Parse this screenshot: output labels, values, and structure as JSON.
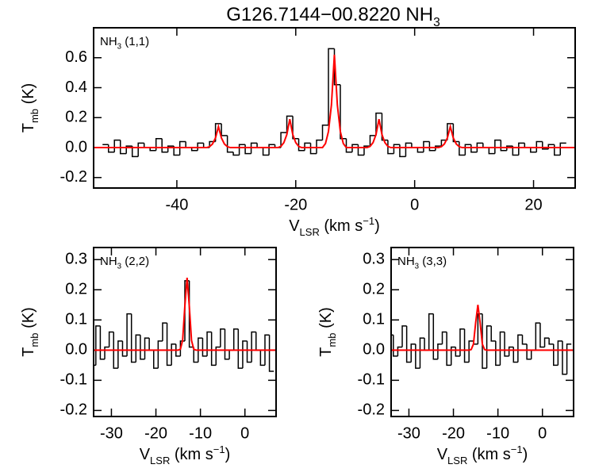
{
  "title": [
    {
      "text": "G126.7144−00.8220 NH"
    },
    {
      "text": "3",
      "shift": "sub"
    }
  ],
  "chart_data": [
    {
      "type": "line",
      "label": [
        {
          "text": "NH"
        },
        {
          "text": "3",
          "shift": "sub"
        },
        {
          "text": " (1,1)"
        }
      ],
      "xlabel": [
        {
          "text": "V"
        },
        {
          "text": "LSR",
          "shift": "sub"
        },
        {
          "text": " (km s"
        },
        {
          "text": "−1",
          "shift": "sup"
        },
        {
          "text": ")"
        }
      ],
      "ylabel": [
        {
          "text": "T"
        },
        {
          "text": "mb",
          "shift": "sub"
        },
        {
          "text": " (K)"
        }
      ],
      "xlim": [
        -54,
        27
      ],
      "xticks": [
        -40,
        -20,
        0,
        20
      ],
      "ylim": [
        -0.27,
        0.8
      ],
      "yticks": [
        -0.2,
        {
          "value": 0,
          "label": "0.0"
        },
        0.2,
        0.4,
        0.6
      ],
      "series": [
        {
          "color": "#000000",
          "drawstyle": "steps-mid",
          "x": [
            -52,
            -51,
            -50,
            -49,
            -48,
            -47,
            -46,
            -45,
            -44,
            -43,
            -42,
            -41,
            -40,
            -39,
            -38,
            -37,
            -36,
            -35,
            -34,
            -33,
            -32,
            -31,
            -30,
            -29,
            -28,
            -27,
            -26,
            -25,
            -24,
            -23,
            -22,
            -21,
            -20,
            -19,
            -18,
            -17,
            -16,
            -15,
            -14,
            -13,
            -12,
            -11,
            -10,
            -9,
            -8,
            -7,
            -6,
            -5,
            -4,
            -3,
            -2,
            -1,
            0,
            1,
            2,
            3,
            4,
            5,
            6,
            7,
            8,
            9,
            10,
            11,
            12,
            13,
            14,
            15,
            16,
            17,
            18,
            19,
            20,
            21,
            22,
            23,
            24,
            25
          ],
          "values": [
            0.02,
            -0.03,
            0.05,
            -0.04,
            0.01,
            -0.06,
            0.03,
            0.0,
            -0.02,
            0.06,
            -0.03,
            0.01,
            -0.05,
            0.04,
            0.0,
            -0.02,
            0.03,
            0.0,
            0.04,
            0.16,
            0.08,
            -0.03,
            -0.05,
            0.02,
            -0.04,
            0.03,
            0.0,
            -0.05,
            0.02,
            0.0,
            0.1,
            0.21,
            0.06,
            -0.02,
            0.03,
            -0.04,
            0.05,
            0.15,
            0.66,
            0.42,
            0.06,
            -0.03,
            0.02,
            -0.05,
            0.01,
            0.08,
            0.23,
            0.05,
            -0.04,
            0.02,
            -0.06,
            0.03,
            0.0,
            -0.03,
            0.04,
            -0.02,
            0.01,
            0.05,
            0.16,
            0.04,
            -0.05,
            0.02,
            -0.03,
            0.03,
            0.0,
            -0.04,
            0.05,
            -0.02,
            0.01,
            -0.05,
            0.03,
            0.0,
            -0.03,
            0.04,
            -0.01,
            0.02,
            -0.05,
            0.03
          ]
        },
        {
          "color": "#ff0000",
          "drawstyle": "line",
          "x": [
            -54,
            -35,
            -34.5,
            -34,
            -33.5,
            -33,
            -32.5,
            -32,
            -31.5,
            -31,
            -23,
            -22.5,
            -22,
            -21.5,
            -21,
            -20.5,
            -20,
            -19.5,
            -19,
            -15.5,
            -15,
            -14.5,
            -14,
            -13.5,
            -13,
            -12.5,
            -12,
            -11.5,
            -8,
            -7.5,
            -7,
            -6.5,
            -6,
            -5.5,
            -5,
            -4.5,
            -4,
            4,
            4.5,
            5,
            5.5,
            6,
            6.5,
            7,
            7.5,
            8,
            27
          ],
          "values": [
            0,
            0,
            0.006,
            0.024,
            0.064,
            0.14,
            0.064,
            0.024,
            0.006,
            0,
            0,
            0.008,
            0.033,
            0.087,
            0.19,
            0.087,
            0.033,
            0.008,
            0,
            0,
            0.027,
            0.107,
            0.284,
            0.62,
            0.284,
            0.107,
            0.027,
            0,
            0,
            0.008,
            0.033,
            0.087,
            0.19,
            0.087,
            0.033,
            0.008,
            0,
            0,
            0.006,
            0.024,
            0.064,
            0.14,
            0.064,
            0.024,
            0.006,
            0,
            0
          ]
        }
      ]
    },
    {
      "type": "line",
      "label": [
        {
          "text": "NH"
        },
        {
          "text": "3",
          "shift": "sub"
        },
        {
          "text": " (2,2)"
        }
      ],
      "xlabel": [
        {
          "text": "V"
        },
        {
          "text": "LSR",
          "shift": "sub"
        },
        {
          "text": " (km s"
        },
        {
          "text": "−1",
          "shift": "sup"
        },
        {
          "text": ")"
        }
      ],
      "ylabel": [
        {
          "text": "T"
        },
        {
          "text": "mb",
          "shift": "sub"
        },
        {
          "text": " (K)"
        }
      ],
      "xlim": [
        -34,
        7
      ],
      "xticks": [
        -30,
        -20,
        -10,
        0
      ],
      "ylim": [
        -0.22,
        0.34
      ],
      "yticks": [
        -0.2,
        -0.1,
        {
          "value": 0,
          "label": "0.0"
        },
        0.1,
        0.2,
        0.3
      ],
      "series": [
        {
          "color": "#000000",
          "drawstyle": "steps-mid",
          "x": [
            -35,
            -34,
            -33,
            -32,
            -31,
            -30,
            -29,
            -28,
            -27,
            -26,
            -25,
            -24,
            -23,
            -22,
            -21,
            -20,
            -19,
            -18,
            -17,
            -16,
            -15,
            -14,
            -13,
            -12,
            -11,
            -10,
            -9,
            -8,
            -7,
            -6,
            -5,
            -4,
            -3,
            -2,
            -1,
            0,
            1,
            2,
            3,
            4,
            5,
            6
          ],
          "values": [
            0.02,
            -0.05,
            0.08,
            -0.03,
            0.01,
            0.06,
            -0.06,
            0.03,
            -0.02,
            0.12,
            -0.04,
            0.05,
            -0.03,
            0.04,
            0.0,
            -0.06,
            0.03,
            0.09,
            -0.05,
            0.02,
            -0.02,
            0.03,
            0.23,
            0.01,
            -0.04,
            0.04,
            -0.02,
            0.06,
            -0.05,
            0.01,
            0.07,
            -0.03,
            0.0,
            0.07,
            -0.06,
            0.03,
            -0.04,
            0.06,
            0.0,
            -0.05,
            0.05,
            -0.07
          ]
        },
        {
          "color": "#ff0000",
          "drawstyle": "line",
          "x": [
            -35,
            -15,
            -14.5,
            -14,
            -13.5,
            -13,
            -12.5,
            -12,
            -11.5,
            -11,
            7
          ],
          "values": [
            0,
            0,
            0.003,
            0.032,
            0.146,
            0.24,
            0.146,
            0.032,
            0.003,
            0,
            0
          ]
        }
      ]
    },
    {
      "type": "line",
      "label": [
        {
          "text": "NH"
        },
        {
          "text": "3",
          "shift": "sub"
        },
        {
          "text": " (3,3)"
        }
      ],
      "xlabel": [
        {
          "text": "V"
        },
        {
          "text": "LSR",
          "shift": "sub"
        },
        {
          "text": " (km s"
        },
        {
          "text": "−1",
          "shift": "sup"
        },
        {
          "text": ")"
        }
      ],
      "ylabel": [
        {
          "text": "T"
        },
        {
          "text": "mb",
          "shift": "sub"
        },
        {
          "text": " (K)"
        }
      ],
      "xlim": [
        -34,
        7
      ],
      "xticks": [
        -30,
        -20,
        -10,
        0
      ],
      "ylim": [
        -0.22,
        0.34
      ],
      "yticks": [
        -0.2,
        -0.1,
        {
          "value": 0,
          "label": "0.0"
        },
        0.1,
        0.2,
        0.3
      ],
      "series": [
        {
          "color": "#000000",
          "drawstyle": "steps-mid",
          "x": [
            -35,
            -34,
            -33,
            -32,
            -31,
            -30,
            -29,
            -28,
            -27,
            -26,
            -25,
            -24,
            -23,
            -22,
            -21,
            -20,
            -19,
            -18,
            -17,
            -16,
            -15,
            -14,
            -13,
            -12,
            -11,
            -10,
            -9,
            -8,
            -7,
            -6,
            -5,
            -4,
            -3,
            -2,
            -1,
            0,
            1,
            2,
            3,
            4,
            5,
            6
          ],
          "values": [
            -0.03,
            0.05,
            -0.02,
            0.01,
            0.08,
            -0.04,
            0.02,
            -0.06,
            0.04,
            0.0,
            0.12,
            -0.03,
            0.02,
            0.06,
            -0.05,
            0.01,
            -0.02,
            0.07,
            -0.04,
            0.03,
            0.02,
            0.12,
            -0.06,
            0.08,
            0.03,
            -0.05,
            0.06,
            -0.02,
            0.01,
            -0.04,
            0.05,
            0.02,
            -0.03,
            0.0,
            0.09,
            0.01,
            0.04,
            0.02,
            -0.05,
            0.03,
            -0.08,
            0.02
          ]
        },
        {
          "color": "#ff0000",
          "drawstyle": "line",
          "x": [
            -35,
            -16.5,
            -16,
            -15.5,
            -15,
            -14.5,
            -14,
            -13.5,
            -13,
            -12.5,
            7
          ],
          "values": [
            0,
            0,
            0.002,
            0.02,
            0.091,
            0.15,
            0.091,
            0.02,
            0.002,
            0,
            0
          ]
        }
      ]
    }
  ]
}
